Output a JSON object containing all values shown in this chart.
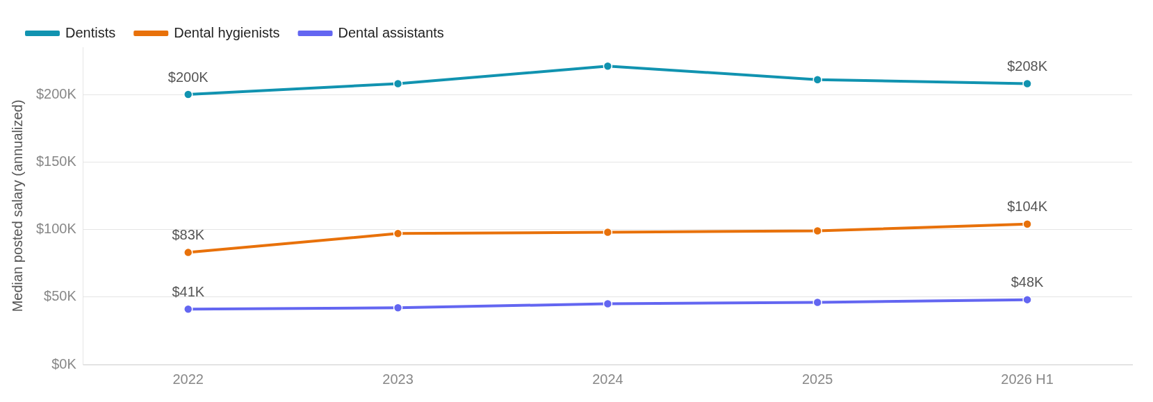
{
  "chart_data": {
    "type": "line",
    "ylabel": "Median posted salary (annualized)",
    "categories": [
      "2022",
      "2023",
      "2024",
      "2025",
      "2026 H1"
    ],
    "series": [
      {
        "name": "Dentists",
        "color": "#1193b0",
        "values": [
          200,
          208,
          221,
          211,
          208
        ],
        "value_labels": [
          "$200K",
          null,
          null,
          null,
          "$208K"
        ]
      },
      {
        "name": "Dental hygienists",
        "color": "#e8710a",
        "values": [
          83,
          97,
          98,
          99,
          104
        ],
        "value_labels": [
          "$83K",
          null,
          null,
          null,
          "$104K"
        ]
      },
      {
        "name": "Dental assistants",
        "color": "#6366f1",
        "values": [
          41,
          42,
          45,
          46,
          48
        ],
        "value_labels": [
          "$41K",
          null,
          null,
          null,
          "$48K"
        ]
      }
    ],
    "ylim": [
      0,
      235
    ],
    "yticks": [
      {
        "value": 0,
        "label": "$0K"
      },
      {
        "value": 50,
        "label": "$50K"
      },
      {
        "value": 100,
        "label": "$100K"
      },
      {
        "value": 150,
        "label": "$150K"
      },
      {
        "value": 200,
        "label": "$200K"
      }
    ],
    "grid": "y",
    "legend": "top left",
    "marker": "circle",
    "line_style": "solid"
  }
}
